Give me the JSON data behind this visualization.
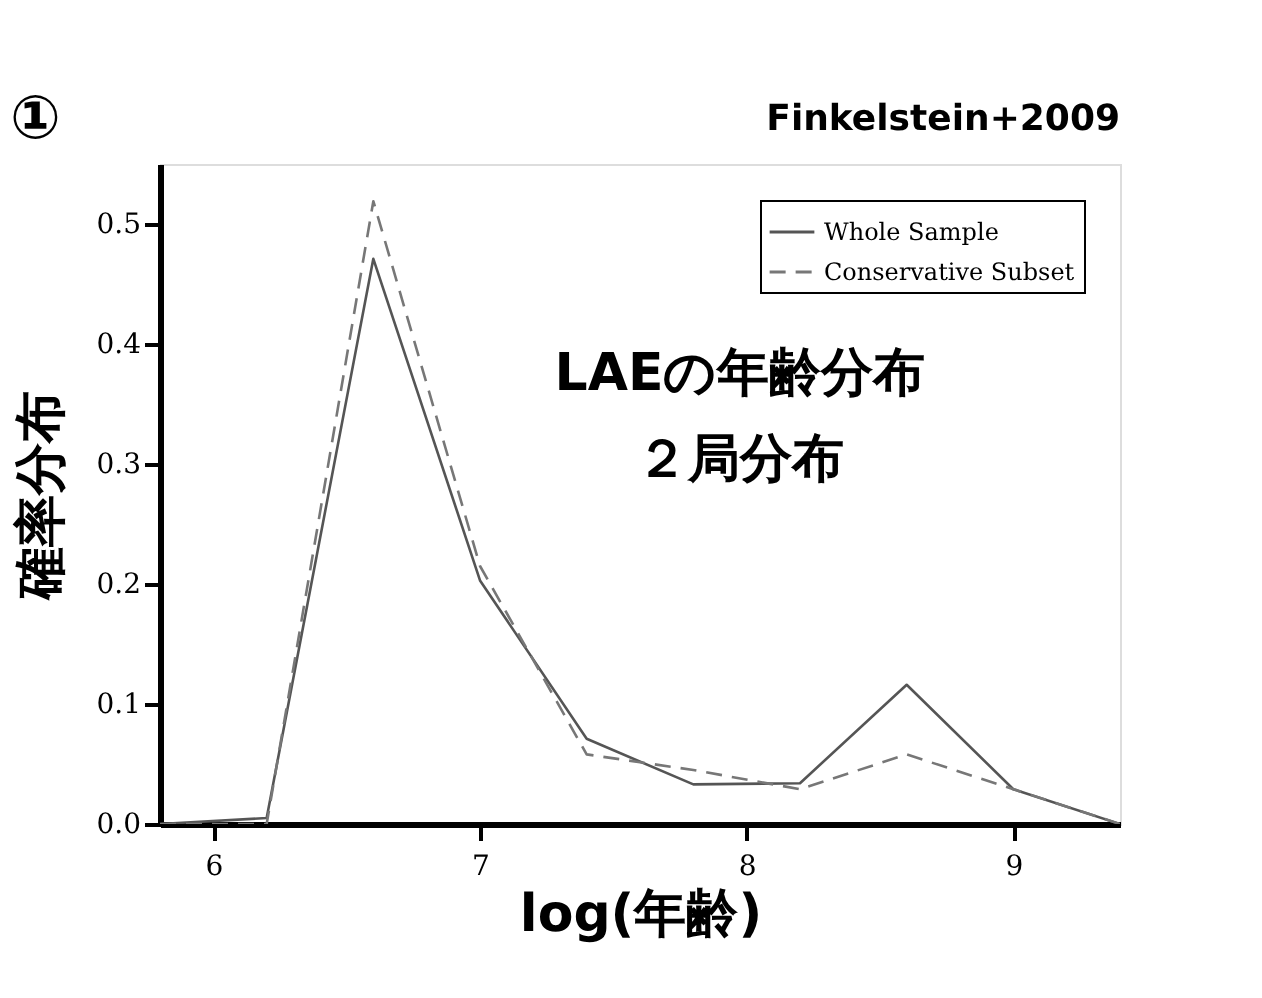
{
  "chart_data": {
    "type": "line",
    "xlabel": "log(年齢)",
    "ylabel": "確率分布",
    "annotations": [
      "①",
      "Finkelstein+2009",
      "LAEの年齢分布",
      "２局分布"
    ],
    "x": [
      5.8,
      6.2,
      6.6,
      7.0,
      7.4,
      7.8,
      8.2,
      8.6,
      9.0,
      9.4
    ],
    "series": [
      {
        "name": "Whole Sample",
        "color": "#555555",
        "line_style": "solid",
        "values": [
          0,
          0.005,
          0.471,
          0.203,
          0.071,
          0.033,
          0.034,
          0.116,
          0.029,
          0
        ]
      },
      {
        "name": "Conservative Subset",
        "color": "#777777",
        "line_style": "dashed",
        "values": [
          0,
          0,
          0.519,
          0.215,
          0.058,
          0.045,
          0.029,
          0.058,
          0.029,
          0
        ]
      }
    ],
    "xlim": [
      5.8,
      9.4
    ],
    "ylim": [
      0,
      0.55
    ],
    "xticks": [
      6,
      7,
      8,
      9
    ],
    "yticks": [
      {
        "value": 0,
        "label": "0.0"
      },
      {
        "value": 0.1,
        "label": "0.1"
      },
      {
        "value": 0.2,
        "label": "0.2"
      },
      {
        "value": 0.3,
        "label": "0.3"
      },
      {
        "value": 0.4,
        "label": "0.4"
      },
      {
        "value": 0.5,
        "label": "0.5"
      }
    ],
    "legend": "top right",
    "grid": false,
    "marker": "none"
  }
}
